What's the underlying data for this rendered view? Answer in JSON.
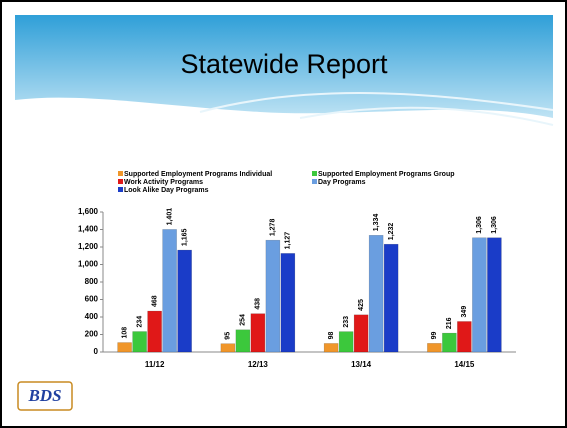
{
  "logo": "BDS",
  "chart_data": {
    "type": "bar",
    "title": "Statewide Report",
    "categories": [
      "11/12",
      "12/13",
      "13/14",
      "14/15"
    ],
    "series": [
      {
        "name": "Supported Employment Programs Individual",
        "color": "#f0962a",
        "values": [
          108,
          95,
          98,
          99
        ],
        "value_labels": [
          "108",
          "95",
          "98",
          "99"
        ]
      },
      {
        "name": "Supported Employment Programs Group",
        "color": "#3cc83c",
        "values": [
          234,
          254,
          233,
          216
        ],
        "value_labels": [
          "234",
          "254",
          "233",
          "216"
        ]
      },
      {
        "name": "Work Activity Programs",
        "color": "#e01818",
        "values": [
          468,
          438,
          425,
          349
        ],
        "value_labels": [
          "468",
          "438",
          "425",
          "349"
        ]
      },
      {
        "name": "Day Programs",
        "color": "#6a9ee0",
        "values": [
          1401,
          1278,
          1334,
          1306
        ],
        "value_labels": [
          "1,401",
          "1,278",
          "1,334",
          "1,306"
        ]
      },
      {
        "name": "Look Alike Day Programs",
        "color": "#1a3cc8",
        "values": [
          1165,
          1127,
          1232,
          1306
        ],
        "value_labels": [
          "1,165",
          "1,127",
          "1,232",
          "1,306"
        ]
      }
    ],
    "ylim": [
      0,
      1600
    ],
    "yticks": [
      0,
      200,
      400,
      600,
      800,
      {
        "value": 1000,
        "label": "1,000"
      },
      {
        "value": 1200,
        "label": "1,200"
      },
      {
        "value": 1400,
        "label": "1,400"
      },
      {
        "value": 1600,
        "label": "1,600"
      }
    ],
    "grid": false
  }
}
